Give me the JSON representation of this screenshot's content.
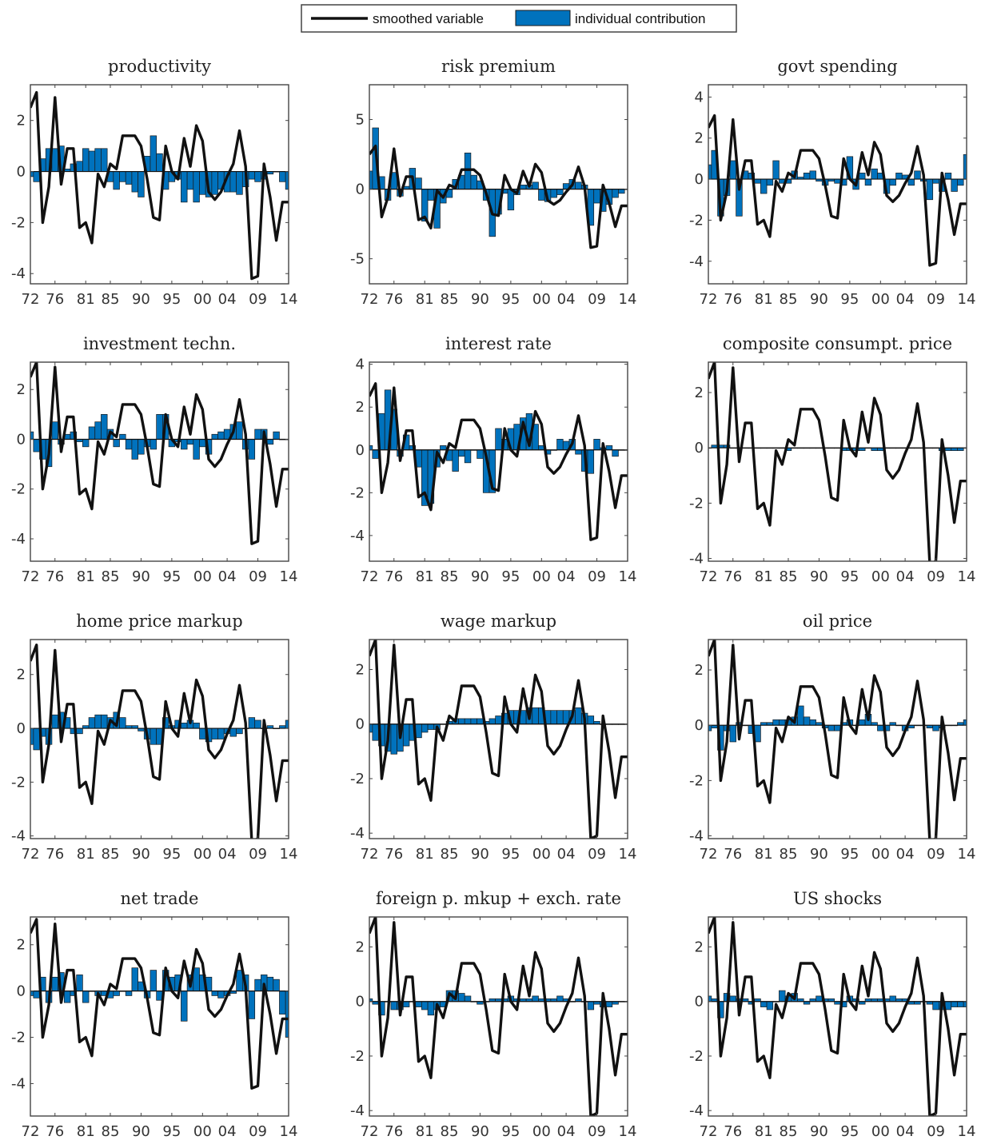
{
  "legend": {
    "line_label": "smoothed variable",
    "bar_label": "individual contribution"
  },
  "colors": {
    "bar": "#0072BD",
    "bar_edge": "#1a1a1a",
    "line": "#111111",
    "frame": "#444444"
  },
  "chart_data": {
    "type": "bar",
    "x_years": [
      1972,
      1973,
      1974,
      1975,
      1976,
      1977,
      1978,
      1979,
      1980,
      1981,
      1982,
      1983,
      1984,
      1985,
      1986,
      1987,
      1988,
      1989,
      1990,
      1991,
      1992,
      1993,
      1994,
      1995,
      1996,
      1997,
      1998,
      1999,
      2000,
      2001,
      2002,
      2003,
      2004,
      2005,
      2006,
      2007,
      2008,
      2009,
      2010,
      2011,
      2012,
      2013,
      2014
    ],
    "x_tick_labels": [
      "72",
      "76",
      "81",
      "85",
      "90",
      "95",
      "00",
      "04",
      "09",
      "14"
    ],
    "x_tick_years": [
      1972,
      1976,
      1981,
      1985,
      1990,
      1995,
      2000,
      2004,
      2009,
      2014
    ],
    "smoothed_variable": [
      2.5,
      3.1,
      -2.0,
      -0.6,
      2.9,
      -0.5,
      0.9,
      0.9,
      -2.2,
      -2.0,
      -2.8,
      -0.1,
      -0.6,
      0.3,
      0.1,
      1.4,
      1.4,
      1.4,
      1.0,
      -0.3,
      -1.8,
      -1.9,
      1.0,
      0.0,
      -0.3,
      1.3,
      0.2,
      1.8,
      1.2,
      -0.8,
      -1.1,
      -0.8,
      -0.2,
      0.3,
      1.6,
      0.2,
      -4.2,
      -4.1,
      0.3,
      -1.0,
      -2.7,
      -1.2,
      -1.2
    ],
    "panels": [
      {
        "title": "productivity",
        "ylim": [
          -4.4,
          3.4
        ],
        "yticks": [
          -4,
          -2,
          0,
          2
        ],
        "values": [
          -0.2,
          -0.4,
          0.5,
          0.9,
          0.9,
          1.0,
          0.1,
          0.3,
          0.4,
          0.9,
          0.8,
          0.9,
          0.9,
          -0.4,
          -0.7,
          -0.4,
          -0.5,
          -0.8,
          -1.0,
          0.6,
          1.4,
          0.7,
          -0.7,
          -0.4,
          -0.3,
          -1.2,
          -0.7,
          -1.2,
          -0.9,
          -1.0,
          -0.9,
          -0.7,
          -0.8,
          -0.8,
          -0.9,
          -0.6,
          -0.3,
          -0.4,
          -0.3,
          -0.1,
          0.0,
          -0.4,
          -0.7
        ]
      },
      {
        "title": "risk premium",
        "ylim": [
          -6.8,
          7.5
        ],
        "yticks": [
          -5,
          0,
          5
        ],
        "values": [
          1.3,
          4.4,
          0.9,
          -0.8,
          1.2,
          -0.5,
          0.2,
          1.5,
          0.8,
          -2.3,
          -0.8,
          -2.8,
          -1.0,
          -0.6,
          0.7,
          1.0,
          2.6,
          1.0,
          0.6,
          -0.8,
          -3.4,
          -1.8,
          -0.3,
          -1.5,
          -0.4,
          0.3,
          0.3,
          0.5,
          -0.8,
          -0.9,
          -0.6,
          -0.4,
          0.4,
          0.7,
          0.5,
          0.3,
          -2.6,
          -1.0,
          -1.6,
          -1.1,
          -0.6,
          -0.3,
          0.0
        ]
      },
      {
        "title": "govt spending",
        "ylim": [
          -5.1,
          4.6
        ],
        "yticks": [
          -4,
          -2,
          0,
          2,
          4
        ],
        "values": [
          0.7,
          1.4,
          -1.8,
          -0.8,
          0.9,
          -1.8,
          0.4,
          0.3,
          -0.2,
          -0.7,
          -0.3,
          0.9,
          -0.2,
          -0.2,
          0.4,
          0.1,
          0.3,
          0.4,
          -0.1,
          -0.3,
          -0.1,
          -0.2,
          -0.3,
          1.1,
          -0.5,
          0.3,
          -0.3,
          0.5,
          0.3,
          -0.7,
          -0.3,
          0.3,
          0.2,
          -0.3,
          0.4,
          -0.1,
          -1.0,
          -0.2,
          -0.6,
          0.3,
          -0.6,
          -0.3,
          1.2
        ]
      },
      {
        "title": "investment techn.",
        "ylim": [
          -4.9,
          3.1
        ],
        "yticks": [
          -4,
          -2,
          0,
          2
        ],
        "values": [
          0.3,
          -0.5,
          -0.8,
          -1.1,
          0.7,
          -0.2,
          0.2,
          0.3,
          -0.1,
          -0.3,
          0.5,
          0.7,
          1.0,
          0.4,
          -0.3,
          0.2,
          -0.4,
          -0.8,
          -0.6,
          -0.3,
          -0.4,
          1.0,
          1.0,
          -0.3,
          -0.1,
          -0.4,
          -0.2,
          -0.8,
          -0.3,
          -0.6,
          0.2,
          0.3,
          0.4,
          0.6,
          0.7,
          -0.4,
          -0.8,
          0.4,
          0.4,
          -0.2,
          0.3,
          0.0,
          0.0
        ]
      },
      {
        "title": "interest rate",
        "ylim": [
          -5.2,
          4.1
        ],
        "yticks": [
          -4,
          -2,
          0,
          2,
          4
        ],
        "values": [
          0.2,
          -0.4,
          1.7,
          2.8,
          1.9,
          -0.3,
          0.7,
          0.2,
          -0.8,
          -2.6,
          -2.5,
          -0.8,
          0.2,
          -0.5,
          -1.0,
          -0.3,
          -0.6,
          0.0,
          -0.4,
          -2.0,
          -2.0,
          1.0,
          0.5,
          1.0,
          1.2,
          1.5,
          1.7,
          1.2,
          0.2,
          -0.2,
          0.0,
          0.5,
          0.4,
          0.5,
          -0.2,
          -1.0,
          -1.1,
          0.5,
          0.1,
          0.2,
          -0.3,
          0.0,
          0.0
        ]
      },
      {
        "title": "composite consumpt. price",
        "ylim": [
          -4.1,
          3.1
        ],
        "yticks": [
          -4,
          -2,
          0,
          2
        ],
        "values": [
          0.0,
          0.1,
          0.1,
          0.1,
          0.0,
          0.0,
          0.0,
          0.0,
          0.0,
          0.0,
          0.0,
          0.0,
          0.0,
          -0.1,
          0.0,
          0.0,
          0.0,
          0.0,
          0.0,
          0.0,
          0.0,
          0.0,
          -0.1,
          -0.1,
          -0.1,
          -0.1,
          0.0,
          -0.1,
          -0.1,
          0.0,
          0.0,
          0.0,
          0.0,
          0.0,
          0.0,
          0.0,
          0.0,
          0.0,
          -0.1,
          -0.1,
          -0.1,
          -0.1,
          0.0
        ]
      },
      {
        "title": "home price markup",
        "ylim": [
          -4.1,
          3.3
        ],
        "yticks": [
          -4,
          -2,
          0,
          2
        ],
        "values": [
          -0.6,
          -0.8,
          -0.3,
          -0.6,
          0.5,
          0.6,
          0.4,
          -0.2,
          -0.2,
          0.1,
          0.4,
          0.5,
          0.5,
          0.4,
          0.6,
          0.4,
          0.1,
          0.1,
          -0.1,
          -0.4,
          -0.6,
          -0.6,
          0.4,
          0.1,
          0.3,
          0.2,
          0.3,
          0.2,
          -0.4,
          -0.5,
          -0.4,
          -0.4,
          -0.2,
          -0.3,
          -0.2,
          0.0,
          0.4,
          0.3,
          0.0,
          0.1,
          0.0,
          0.1,
          0.3
        ]
      },
      {
        "title": "wage markup",
        "ylim": [
          -4.2,
          3.1
        ],
        "yticks": [
          -4,
          -2,
          0,
          2
        ],
        "values": [
          -0.3,
          -0.6,
          -0.8,
          -1.0,
          -1.1,
          -1.0,
          -0.8,
          -0.6,
          -0.5,
          -0.3,
          -0.2,
          -0.2,
          0.0,
          0.1,
          0.2,
          0.2,
          0.2,
          0.2,
          0.2,
          0.1,
          0.2,
          0.3,
          0.4,
          0.5,
          0.5,
          0.5,
          0.6,
          0.6,
          0.6,
          0.5,
          0.5,
          0.5,
          0.5,
          0.5,
          0.6,
          0.4,
          0.3,
          0.1,
          0.0,
          0.0,
          0.0,
          0.0,
          0.0
        ]
      },
      {
        "title": "oil price",
        "ylim": [
          -4.1,
          3.1
        ],
        "yticks": [
          -4,
          -2,
          0,
          2
        ],
        "values": [
          -0.2,
          -0.1,
          -0.9,
          -0.2,
          -0.6,
          0.1,
          0.0,
          -0.3,
          -0.6,
          0.1,
          0.1,
          0.2,
          0.2,
          0.2,
          0.3,
          0.7,
          0.3,
          0.2,
          0.1,
          -0.1,
          -0.2,
          -0.2,
          0.1,
          0.2,
          0.0,
          0.2,
          0.4,
          0.1,
          -0.2,
          -0.2,
          0.1,
          0.0,
          -0.2,
          -0.1,
          0.0,
          0.0,
          -0.1,
          -0.2,
          -0.1,
          0.0,
          0.0,
          0.1,
          0.2
        ]
      },
      {
        "title": "net trade",
        "ylim": [
          -5.4,
          3.2
        ],
        "yticks": [
          -4,
          -2,
          0,
          2
        ],
        "values": [
          -0.2,
          -0.3,
          0.6,
          -0.5,
          0.6,
          0.8,
          -0.5,
          -0.2,
          0.7,
          -0.5,
          0.0,
          -0.2,
          -0.2,
          -0.3,
          -0.2,
          0.0,
          -0.2,
          1.0,
          0.4,
          -0.3,
          0.9,
          -0.4,
          0.9,
          0.6,
          0.7,
          -1.3,
          0.7,
          1.0,
          0.7,
          0.6,
          -0.2,
          -0.3,
          -0.2,
          -0.1,
          0.9,
          0.7,
          -1.2,
          0.5,
          0.7,
          0.6,
          0.5,
          -1.0,
          -2.0
        ]
      },
      {
        "title": "foreign p. mkup + exch. rate",
        "ylim": [
          -4.2,
          3.1
        ],
        "yticks": [
          -4,
          -2,
          0,
          2
        ],
        "values": [
          0.1,
          -0.1,
          -0.5,
          0.0,
          -0.3,
          -0.3,
          -0.2,
          0.0,
          -0.2,
          -0.3,
          -0.5,
          -0.3,
          -0.2,
          0.4,
          0.4,
          0.3,
          0.2,
          0.0,
          -0.1,
          0.0,
          0.1,
          0.1,
          0.1,
          0.2,
          0.1,
          0.1,
          0.1,
          0.2,
          0.1,
          0.1,
          0.1,
          0.2,
          0.1,
          0.0,
          0.1,
          0.0,
          -0.3,
          -0.1,
          -0.2,
          -0.2,
          -0.1,
          0.0,
          0.0
        ]
      },
      {
        "title": "US shocks",
        "ylim": [
          -4.2,
          3.1
        ],
        "yticks": [
          -4,
          -2,
          0,
          2
        ],
        "values": [
          0.2,
          0.1,
          -0.6,
          0.3,
          0.2,
          0.1,
          0.1,
          -0.1,
          0.1,
          -0.2,
          -0.3,
          0.0,
          0.4,
          0.2,
          0.3,
          0.1,
          -0.1,
          0.1,
          0.2,
          0.1,
          0.1,
          -0.1,
          -0.2,
          0.2,
          0.1,
          -0.1,
          0.1,
          0.1,
          0.1,
          0.1,
          0.2,
          0.1,
          0.1,
          -0.1,
          -0.1,
          0.0,
          -0.1,
          -0.3,
          -0.3,
          -0.3,
          -0.2,
          -0.2,
          -0.2
        ]
      }
    ]
  }
}
